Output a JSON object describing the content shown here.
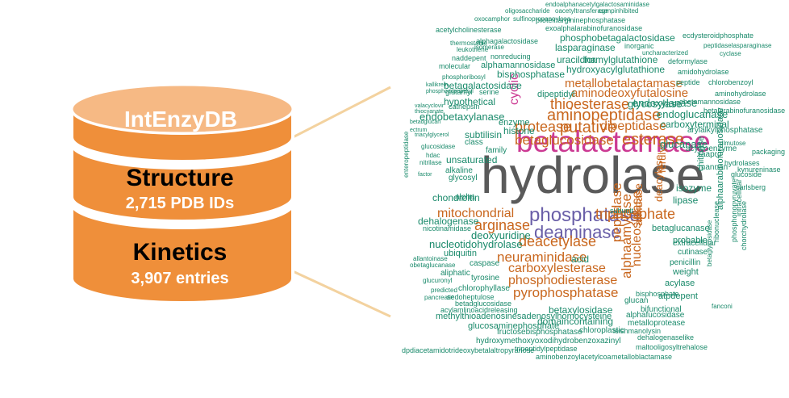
{
  "database": {
    "name": "IntEnzyDB",
    "structure_title": "Structure",
    "structure_count": "2,715 PDB IDs",
    "kinetics_title": "Kinetics",
    "kinetics_count": "3,907 entries"
  },
  "colors": {
    "disk_fill": "#ef8f3a",
    "disk_top": "#f6b984",
    "disk_edge": "#ffffff",
    "connector": "#f3d29f",
    "word_teal": "#1a8a6b",
    "word_orange": "#c9671e",
    "word_magenta": "#cc3a93",
    "word_purple": "#6a5fa8",
    "word_gray": "#5a5a5a"
  },
  "word_cloud": {
    "words": [
      {
        "text": "hydrolase",
        "color": "gray"
      },
      {
        "text": "betalactamase",
        "color": "magenta"
      },
      {
        "text": "phosphatase",
        "color": "purple"
      },
      {
        "text": "deaminase",
        "color": "purple"
      },
      {
        "text": "aminopeptidase",
        "color": "orange"
      },
      {
        "text": "betaglucosidase",
        "color": "orange"
      },
      {
        "text": "esterase",
        "color": "orange"
      },
      {
        "text": "putative",
        "color": "orange"
      },
      {
        "text": "protease",
        "color": "orange"
      },
      {
        "text": "thioesterase",
        "color": "orange"
      },
      {
        "text": "mitochondrial",
        "color": "orange"
      },
      {
        "text": "arginase",
        "color": "orange"
      },
      {
        "text": "deacetylase",
        "color": "orange"
      },
      {
        "text": "neuraminidase",
        "color": "orange"
      },
      {
        "text": "carboxylesterase",
        "color": "orange"
      },
      {
        "text": "phosphodiesterase",
        "color": "orange"
      },
      {
        "text": "pyrophosphatase",
        "color": "orange"
      },
      {
        "text": "peptidase",
        "color": "orange"
      },
      {
        "text": "metallobetalactamase",
        "color": "orange"
      },
      {
        "text": "aminodeoxyfutalosine",
        "color": "orange"
      },
      {
        "text": "dipeptidase",
        "color": "orange"
      },
      {
        "text": "triphosphate",
        "color": "orange"
      },
      {
        "text": "alphaamylase",
        "color": "orange"
      },
      {
        "text": "nucleosidase",
        "color": "orange"
      },
      {
        "text": "amidase",
        "color": "orange"
      },
      {
        "text": "deacylase",
        "color": "orange"
      },
      {
        "text": "ferulyl",
        "color": "orange"
      },
      {
        "text": "endoxylanase",
        "color": "teal"
      },
      {
        "text": "cyclic",
        "color": "magenta"
      },
      {
        "text": "endoglucanase",
        "color": "teal"
      },
      {
        "text": "glycosylase",
        "color": "teal"
      },
      {
        "text": "carboxyterminal",
        "color": "teal"
      },
      {
        "text": "glucanase",
        "color": "teal"
      },
      {
        "text": "endobetaxylanase",
        "color": "teal"
      },
      {
        "text": "histone",
        "color": "teal"
      },
      {
        "text": "hypothetical",
        "color": "teal"
      },
      {
        "text": "betagalactosidase",
        "color": "teal"
      },
      {
        "text": "hydroxyacylglutathione",
        "color": "teal"
      },
      {
        "text": "formylglutathione",
        "color": "teal"
      },
      {
        "text": "uracildna",
        "color": "teal"
      },
      {
        "text": "lasparaginase",
        "color": "teal"
      },
      {
        "text": "phosphobetagalactosidase",
        "color": "teal"
      },
      {
        "text": "bisphosphatase",
        "color": "teal"
      },
      {
        "text": "alphamannosidase",
        "color": "teal"
      },
      {
        "text": "nucleotidohydrolase",
        "color": "teal"
      },
      {
        "text": "deoxyuridine",
        "color": "teal"
      },
      {
        "text": "chondroitin",
        "color": "teal"
      },
      {
        "text": "dehalogenase",
        "color": "teal"
      },
      {
        "text": "unsaturated",
        "color": "teal"
      },
      {
        "text": "subtilisin",
        "color": "teal"
      },
      {
        "text": "enzyme",
        "color": "teal"
      },
      {
        "text": "dipeptidyl",
        "color": "teal"
      },
      {
        "text": "domaincontaining",
        "color": "teal"
      },
      {
        "text": "betaxylosidase",
        "color": "teal"
      },
      {
        "text": "methylthioadenosinesadenosylhomocysteine",
        "color": "teal"
      },
      {
        "text": "glucosaminephosphate",
        "color": "teal"
      },
      {
        "text": "fructosebisphosphatase",
        "color": "teal"
      },
      {
        "text": "chloroplastic",
        "color": "teal"
      },
      {
        "text": "hydroxymethoxyoxodihydrobenzoxazinyl",
        "color": "teal"
      },
      {
        "text": "tripeptidylpeptidase",
        "color": "teal"
      },
      {
        "text": "aminobenzoylacetylcoa",
        "color": "teal"
      },
      {
        "text": "metalloblactamase",
        "color": "teal"
      },
      {
        "text": "dpdiacetamidotrideoxybetalaltropyranose",
        "color": "teal"
      },
      {
        "text": "maltooligosyltrehalose",
        "color": "teal"
      },
      {
        "text": "dehalogenaselike",
        "color": "teal"
      },
      {
        "text": "leishmanolysin",
        "color": "teal"
      },
      {
        "text": "metalloprotease",
        "color": "teal"
      },
      {
        "text": "alphafucosidase",
        "color": "teal"
      },
      {
        "text": "bifunctional",
        "color": "teal"
      },
      {
        "text": "atpdepent",
        "color": "teal"
      },
      {
        "text": "acylase",
        "color": "teal"
      },
      {
        "text": "weight",
        "color": "teal"
      },
      {
        "text": "penicillin",
        "color": "teal"
      },
      {
        "text": "cutinase",
        "color": "teal"
      },
      {
        "text": "extracellular",
        "color": "teal"
      },
      {
        "text": "probable",
        "color": "teal"
      },
      {
        "text": "betaglucanase",
        "color": "teal"
      },
      {
        "text": "lipase",
        "color": "teal"
      },
      {
        "text": "isozyme",
        "color": "teal"
      },
      {
        "text": "chitinase",
        "color": "teal"
      },
      {
        "text": "mannan",
        "color": "teal"
      },
      {
        "text": "glucoside",
        "color": "teal"
      },
      {
        "text": "acylcoenzyme",
        "color": "teal"
      },
      {
        "text": "xaapro",
        "color": "teal"
      },
      {
        "text": "arylalkylphosphatase",
        "color": "teal"
      },
      {
        "text": "aminohydrolase",
        "color": "teal"
      },
      {
        "text": "obetamannosidase",
        "color": "teal"
      },
      {
        "text": "amidohydrolase",
        "color": "teal"
      },
      {
        "text": "deformylase",
        "color": "teal"
      },
      {
        "text": "peptide",
        "color": "teal"
      },
      {
        "text": "chlorobenzoyl",
        "color": "teal"
      },
      {
        "text": "betalarabinofuranosidase",
        "color": "teal"
      },
      {
        "text": "ecdysteroidphosphate",
        "color": "teal"
      },
      {
        "text": "peptidaselasparaginase",
        "color": "teal"
      },
      {
        "text": "cyclase",
        "color": "teal"
      },
      {
        "text": "uncharacterized",
        "color": "teal"
      },
      {
        "text": "inorganic",
        "color": "teal"
      },
      {
        "text": "exoalphalarabinofuranosidase",
        "color": "teal"
      },
      {
        "text": "proteinargininephosphatase",
        "color": "teal"
      },
      {
        "text": "acetylcholinesterase",
        "color": "teal"
      },
      {
        "text": "oxocamphor",
        "color": "teal"
      },
      {
        "text": "sulfinopropanoylcoa",
        "color": "teal"
      },
      {
        "text": "oligosaccharide",
        "color": "teal"
      },
      {
        "text": "oacetyltransferase",
        "color": "teal"
      },
      {
        "text": "cgmpinhibited",
        "color": "teal"
      },
      {
        "text": "endoalphanacetylgalactosaminidase",
        "color": "teal"
      },
      {
        "text": "alphagalactosidase",
        "color": "teal"
      },
      {
        "text": "thermostable",
        "color": "teal"
      },
      {
        "text": "isomerase",
        "color": "teal"
      },
      {
        "text": "leukotriene",
        "color": "teal"
      },
      {
        "text": "naddepent",
        "color": "teal"
      },
      {
        "text": "nonreducing",
        "color": "teal"
      },
      {
        "text": "molecular",
        "color": "teal"
      },
      {
        "text": "phosphoribosyl",
        "color": "teal"
      },
      {
        "text": "kallikrein",
        "color": "teal"
      },
      {
        "text": "phosphoadpribosyl",
        "color": "teal"
      },
      {
        "text": "glutamyl",
        "color": "teal"
      },
      {
        "text": "serine",
        "color": "teal"
      },
      {
        "text": "valacyclovir",
        "color": "teal"
      },
      {
        "text": "thiocyanate",
        "color": "teal"
      },
      {
        "text": "cathepsin",
        "color": "teal"
      },
      {
        "text": "betadglucan",
        "color": "teal"
      },
      {
        "text": "ectrum",
        "color": "teal"
      },
      {
        "text": "triacylglycerol",
        "color": "teal"
      },
      {
        "text": "glucosidase",
        "color": "teal"
      },
      {
        "text": "class",
        "color": "teal"
      },
      {
        "text": "family",
        "color": "teal"
      },
      {
        "text": "hdac",
        "color": "teal"
      },
      {
        "text": "nitrilase",
        "color": "teal"
      },
      {
        "text": "alkaline",
        "color": "teal"
      },
      {
        "text": "glycosyl",
        "color": "teal"
      },
      {
        "text": "enteropeptidase",
        "color": "teal"
      },
      {
        "text": "factor",
        "color": "teal"
      },
      {
        "text": "alpha",
        "color": "teal"
      },
      {
        "text": "nicotinamidase",
        "color": "teal"
      },
      {
        "text": "acid",
        "color": "teal"
      },
      {
        "text": "ubiquitin",
        "color": "teal"
      },
      {
        "text": "allantoinase",
        "color": "teal"
      },
      {
        "text": "obetaglucanase",
        "color": "teal"
      },
      {
        "text": "caspase",
        "color": "teal"
      },
      {
        "text": "aliphatic",
        "color": "teal"
      },
      {
        "text": "glucuronyl",
        "color": "teal"
      },
      {
        "text": "tyrosine",
        "color": "teal"
      },
      {
        "text": "chlorophyllase",
        "color": "teal"
      },
      {
        "text": "sedoheptulose",
        "color": "teal"
      },
      {
        "text": "betadglucosidase",
        "color": "teal"
      },
      {
        "text": "acylamlinoacidreleasing",
        "color": "teal"
      },
      {
        "text": "predicted",
        "color": "teal"
      },
      {
        "text": "pancreatic",
        "color": "teal"
      },
      {
        "text": "subunit",
        "color": "teal"
      },
      {
        "text": "fanconi",
        "color": "teal"
      },
      {
        "text": "hydrolases",
        "color": "teal"
      },
      {
        "text": "kynureninase",
        "color": "teal"
      },
      {
        "text": "carlsberg",
        "color": "teal"
      },
      {
        "text": "packaging",
        "color": "teal"
      },
      {
        "text": "dlmutose",
        "color": "teal"
      },
      {
        "text": "ribonuclease",
        "color": "teal"
      },
      {
        "text": "alphaarabinofuranosidase",
        "color": "teal"
      },
      {
        "text": "phosphonopyruvate",
        "color": "teal"
      },
      {
        "text": "betaglycosidase",
        "color": "teal"
      },
      {
        "text": "chorchydrolase",
        "color": "teal"
      },
      {
        "text": "intracellular",
        "color": "teal"
      },
      {
        "text": "glucan",
        "color": "teal"
      },
      {
        "text": "bisphosphate",
        "color": "teal"
      }
    ]
  }
}
